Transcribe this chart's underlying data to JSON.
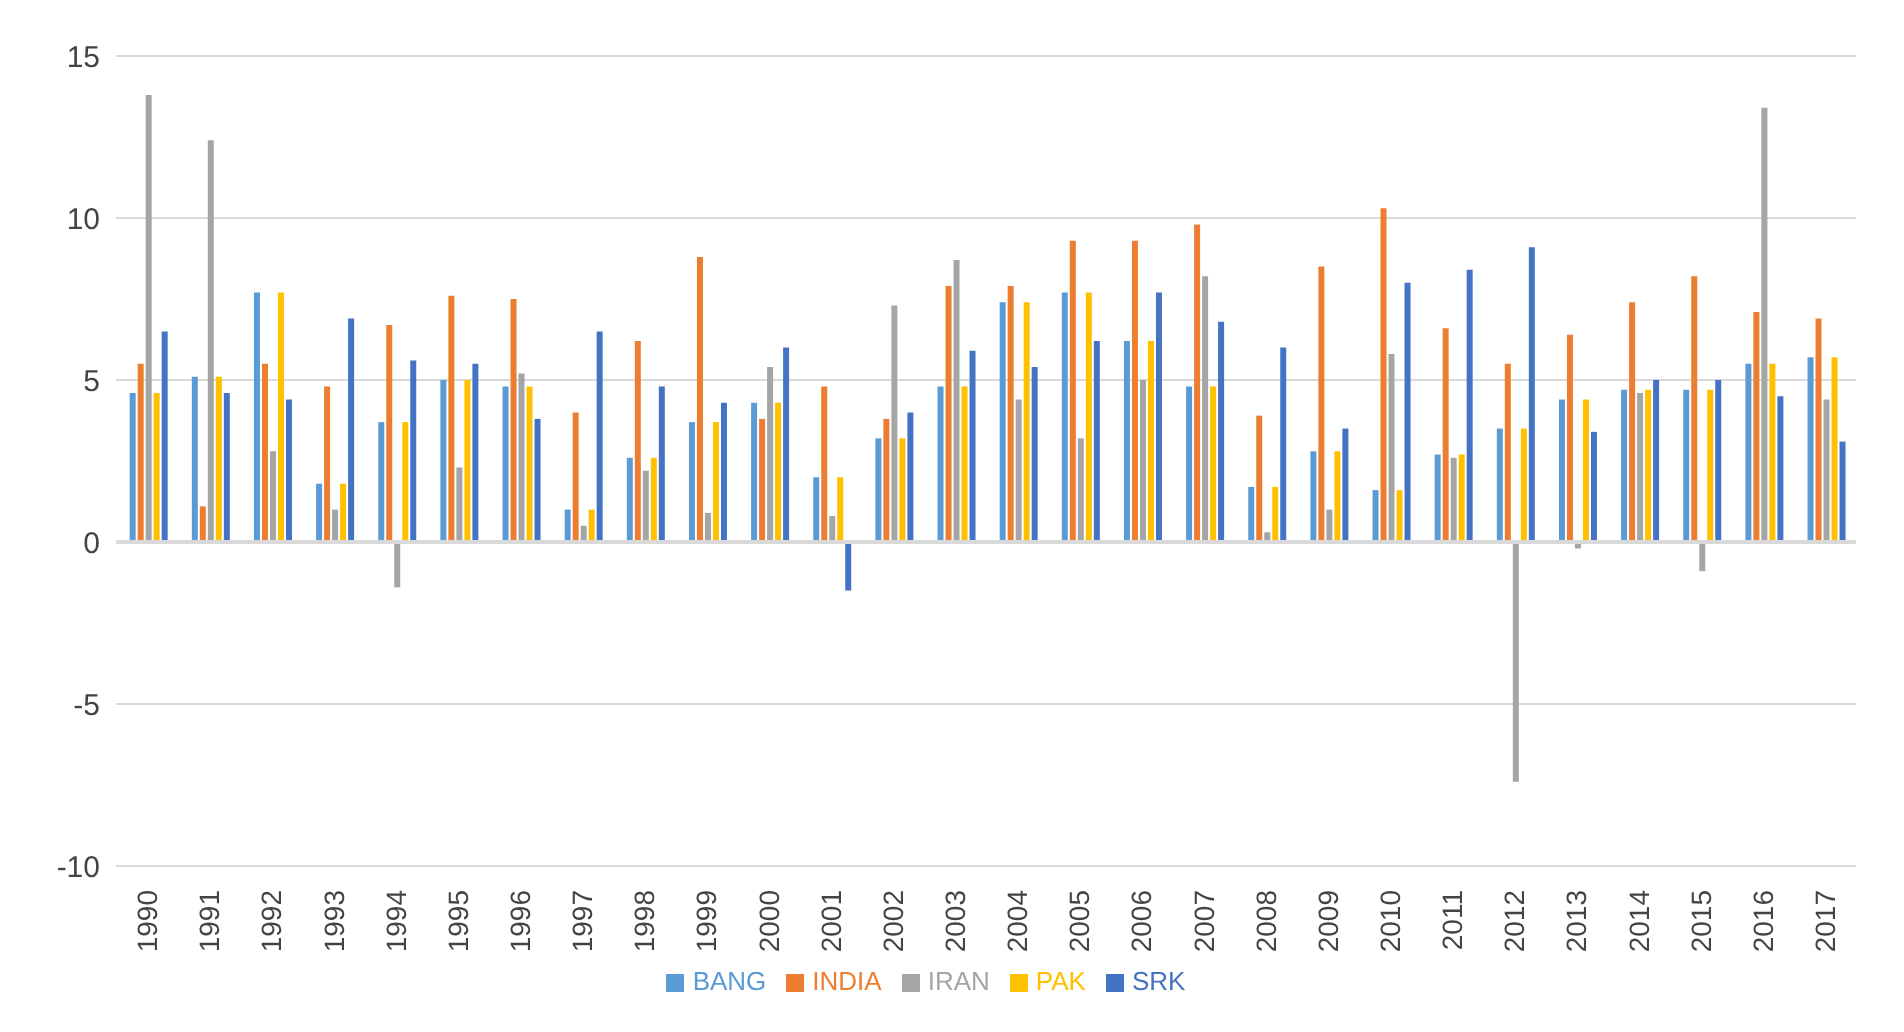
{
  "chart_data": {
    "type": "bar",
    "categories": [
      "1990",
      "1991",
      "1992",
      "1993",
      "1994",
      "1995",
      "1996",
      "1997",
      "1998",
      "1999",
      "2000",
      "2001",
      "2002",
      "2003",
      "2004",
      "2005",
      "2006",
      "2007",
      "2008",
      "2009",
      "2010",
      "2011",
      "2012",
      "2013",
      "2014",
      "2015",
      "2016",
      "2017"
    ],
    "series": [
      {
        "name": "BANG",
        "color": "#5b9bd5",
        "values": [
          4.6,
          5.1,
          7.7,
          1.8,
          3.7,
          5.0,
          4.8,
          1.0,
          2.6,
          3.7,
          4.3,
          2.0,
          3.2,
          4.8,
          7.4,
          7.7,
          6.2,
          4.8,
          1.7,
          2.8,
          1.6,
          2.7,
          3.5,
          4.4,
          4.7,
          4.7,
          5.5,
          5.7
        ]
      },
      {
        "name": "INDIA",
        "color": "#ed7d31",
        "values": [
          5.5,
          1.1,
          5.5,
          4.8,
          6.7,
          7.6,
          7.5,
          4.0,
          6.2,
          8.8,
          3.8,
          4.8,
          3.8,
          7.9,
          7.9,
          9.3,
          9.3,
          9.8,
          3.9,
          8.5,
          10.3,
          6.6,
          5.5,
          6.4,
          7.4,
          8.2,
          7.1,
          6.9
        ]
      },
      {
        "name": "IRAN",
        "color": "#a5a5a5",
        "values": [
          13.8,
          12.4,
          2.8,
          1.0,
          -1.4,
          2.3,
          5.2,
          0.5,
          2.2,
          0.9,
          5.4,
          0.8,
          7.3,
          8.7,
          4.4,
          3.2,
          5.0,
          8.2,
          0.3,
          1.0,
          5.8,
          2.6,
          -7.4,
          -0.2,
          4.6,
          -0.9,
          13.4,
          4.4
        ]
      },
      {
        "name": "PAK",
        "color": "#ffc000",
        "values": [
          4.6,
          5.1,
          7.7,
          1.8,
          3.7,
          5.0,
          4.8,
          1.0,
          2.6,
          3.7,
          4.3,
          2.0,
          3.2,
          4.8,
          7.4,
          7.7,
          6.2,
          4.8,
          1.7,
          2.8,
          1.6,
          2.7,
          3.5,
          4.4,
          4.7,
          4.7,
          5.5,
          5.7
        ]
      },
      {
        "name": "SRK",
        "color": "#4472c4",
        "values": [
          6.5,
          4.6,
          4.4,
          6.9,
          5.6,
          5.5,
          3.8,
          6.5,
          4.8,
          4.3,
          6.0,
          -1.5,
          4.0,
          5.9,
          5.4,
          6.2,
          7.7,
          6.8,
          6.0,
          3.5,
          8.0,
          8.4,
          9.1,
          3.4,
          5.0,
          5.0,
          4.5,
          3.1
        ]
      }
    ],
    "ylim": [
      -10,
      15
    ],
    "yticks": [
      -10,
      -5,
      0,
      5,
      10,
      15
    ],
    "grid": "y",
    "legend": "bottom"
  }
}
